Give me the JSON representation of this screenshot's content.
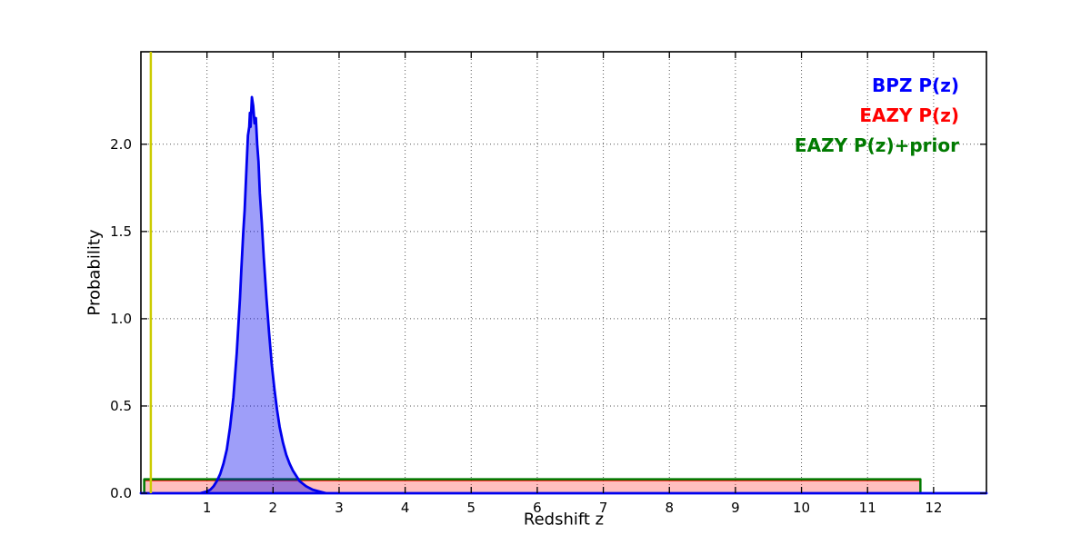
{
  "figure": {
    "xlabel": "Redshift z",
    "ylabel": "Probability"
  },
  "chart_data": {
    "type": "area",
    "title": "",
    "xlabel": "Redshift z",
    "ylabel": "Probability",
    "xlim": [
      0,
      12.8
    ],
    "ylim": [
      0,
      2.53
    ],
    "xticks": [
      1,
      2,
      3,
      4,
      5,
      6,
      7,
      8,
      9,
      10,
      11,
      12
    ],
    "yticks": [
      0.0,
      0.5,
      1.0,
      1.5,
      2.0
    ],
    "ytick_labels": [
      "0.0",
      "0.5",
      "1.0",
      "1.5",
      "2.0"
    ],
    "grid": true,
    "grid_style": "dotted",
    "legend_position": "upper right",
    "legend": [
      {
        "label": "BPZ P(z)",
        "color": "#0000ff"
      },
      {
        "label": "EAZY P(z)",
        "color": "#ff0000"
      },
      {
        "label": "EAZY P(z)+prior",
        "color": "#007a00"
      }
    ],
    "series": [
      {
        "name": "BPZ P(z)",
        "type": "area",
        "color": "#0000ee",
        "fill_opacity": 0.38,
        "line_width": 2.8,
        "points": [
          [
            0,
            0
          ],
          [
            0.9,
            0
          ],
          [
            1.0,
            0.01
          ],
          [
            1.05,
            0.02
          ],
          [
            1.1,
            0.04
          ],
          [
            1.15,
            0.07
          ],
          [
            1.2,
            0.11
          ],
          [
            1.25,
            0.17
          ],
          [
            1.3,
            0.25
          ],
          [
            1.35,
            0.38
          ],
          [
            1.4,
            0.55
          ],
          [
            1.45,
            0.8
          ],
          [
            1.5,
            1.12
          ],
          [
            1.52,
            1.28
          ],
          [
            1.55,
            1.5
          ],
          [
            1.57,
            1.62
          ],
          [
            1.6,
            1.88
          ],
          [
            1.62,
            2.05
          ],
          [
            1.64,
            2.1
          ],
          [
            1.65,
            2.18
          ],
          [
            1.66,
            2.1
          ],
          [
            1.68,
            2.27
          ],
          [
            1.7,
            2.22
          ],
          [
            1.72,
            2.12
          ],
          [
            1.74,
            2.15
          ],
          [
            1.76,
            2.0
          ],
          [
            1.78,
            1.9
          ],
          [
            1.8,
            1.72
          ],
          [
            1.83,
            1.55
          ],
          [
            1.86,
            1.35
          ],
          [
            1.9,
            1.12
          ],
          [
            1.94,
            0.92
          ],
          [
            1.98,
            0.74
          ],
          [
            2.02,
            0.6
          ],
          [
            2.06,
            0.48
          ],
          [
            2.1,
            0.38
          ],
          [
            2.15,
            0.29
          ],
          [
            2.2,
            0.22
          ],
          [
            2.25,
            0.17
          ],
          [
            2.3,
            0.13
          ],
          [
            2.4,
            0.07
          ],
          [
            2.5,
            0.04
          ],
          [
            2.6,
            0.02
          ],
          [
            2.7,
            0.01
          ],
          [
            2.8,
            0
          ],
          [
            12.8,
            0
          ]
        ]
      },
      {
        "name": "EAZY P(z)",
        "type": "area",
        "color": "#ff0000",
        "fill_opacity": 0.25,
        "line_width": 1.5,
        "points": [
          [
            0.05,
            0.073
          ],
          [
            11.8,
            0.073
          ]
        ]
      },
      {
        "name": "EAZY P(z)+prior",
        "type": "line",
        "color": "#007a00",
        "line_width": 2.5,
        "points": [
          [
            0.05,
            0
          ],
          [
            0.05,
            0.08
          ],
          [
            11.8,
            0.08
          ],
          [
            11.8,
            0
          ]
        ]
      }
    ],
    "vline": {
      "x": 0.15,
      "color": "#cccc00",
      "line_width": 2.5
    }
  }
}
